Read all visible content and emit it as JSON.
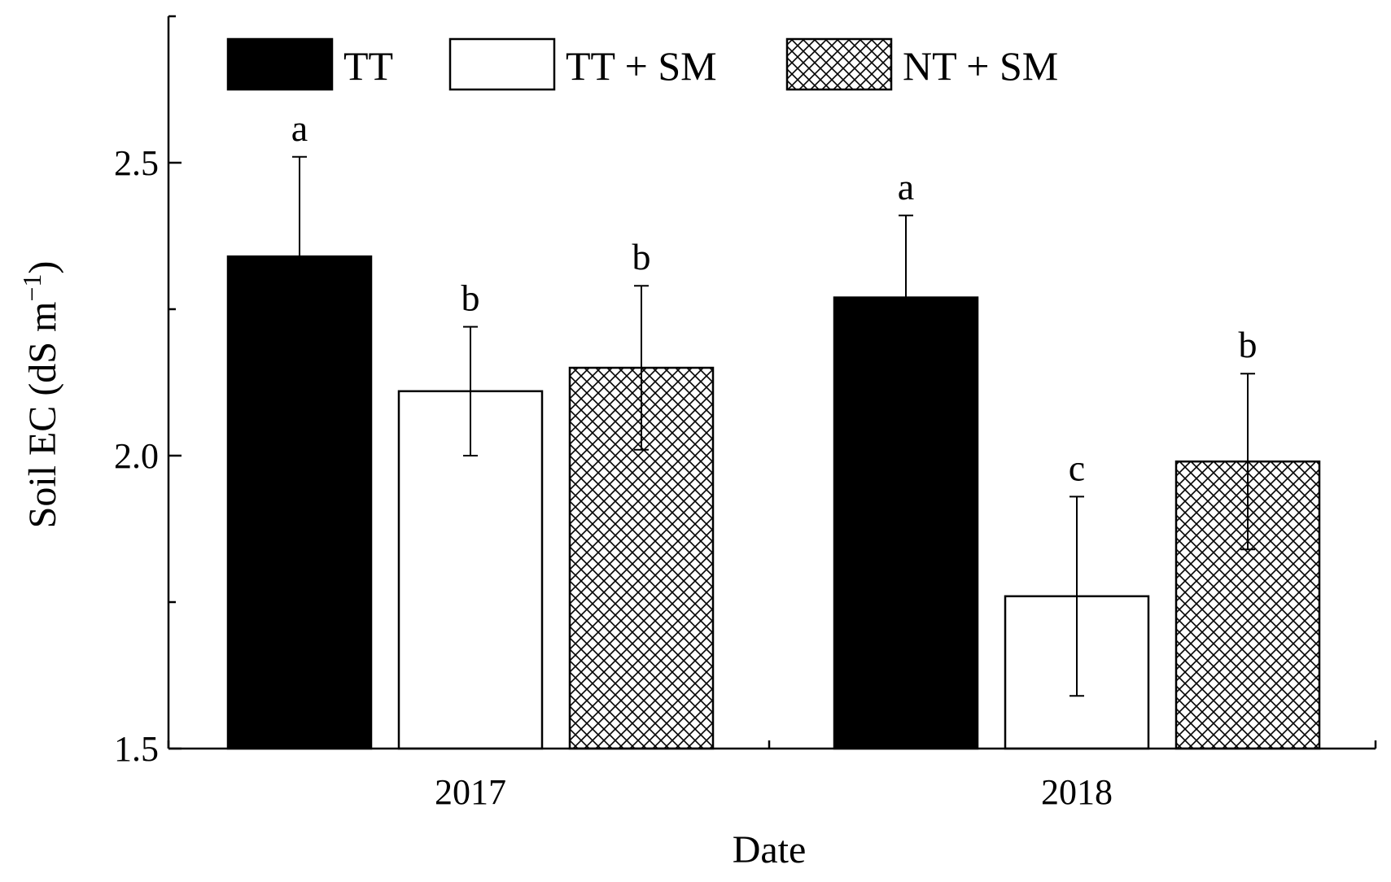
{
  "chart_data": {
    "type": "bar",
    "title": "",
    "xlabel": "Date",
    "ylabel": "Soil EC (dS m",
    "ylabel_superscript": "−1",
    "ylabel_close": ")",
    "ylim": [
      1.5,
      2.75
    ],
    "yticks": [
      1.5,
      2.0,
      2.5
    ],
    "ytick_labels": [
      "1.5",
      "2.0",
      "2.5"
    ],
    "categories": [
      "2017",
      "2018"
    ],
    "legend_position": "top",
    "series": [
      {
        "name": "TT",
        "fill": "solid",
        "values": [
          2.34,
          2.27
        ],
        "errors": [
          0.17,
          0.14
        ],
        "letters": [
          "a",
          "a"
        ]
      },
      {
        "name": "TT + SM",
        "fill": "white",
        "values": [
          2.11,
          1.76
        ],
        "errors": [
          0.11,
          0.17
        ],
        "letters": [
          "b",
          "c"
        ]
      },
      {
        "name": "NT + SM",
        "fill": "crosshatch",
        "values": [
          2.15,
          1.99
        ],
        "errors": [
          0.14,
          0.15
        ],
        "letters": [
          "b",
          "b"
        ]
      }
    ]
  }
}
